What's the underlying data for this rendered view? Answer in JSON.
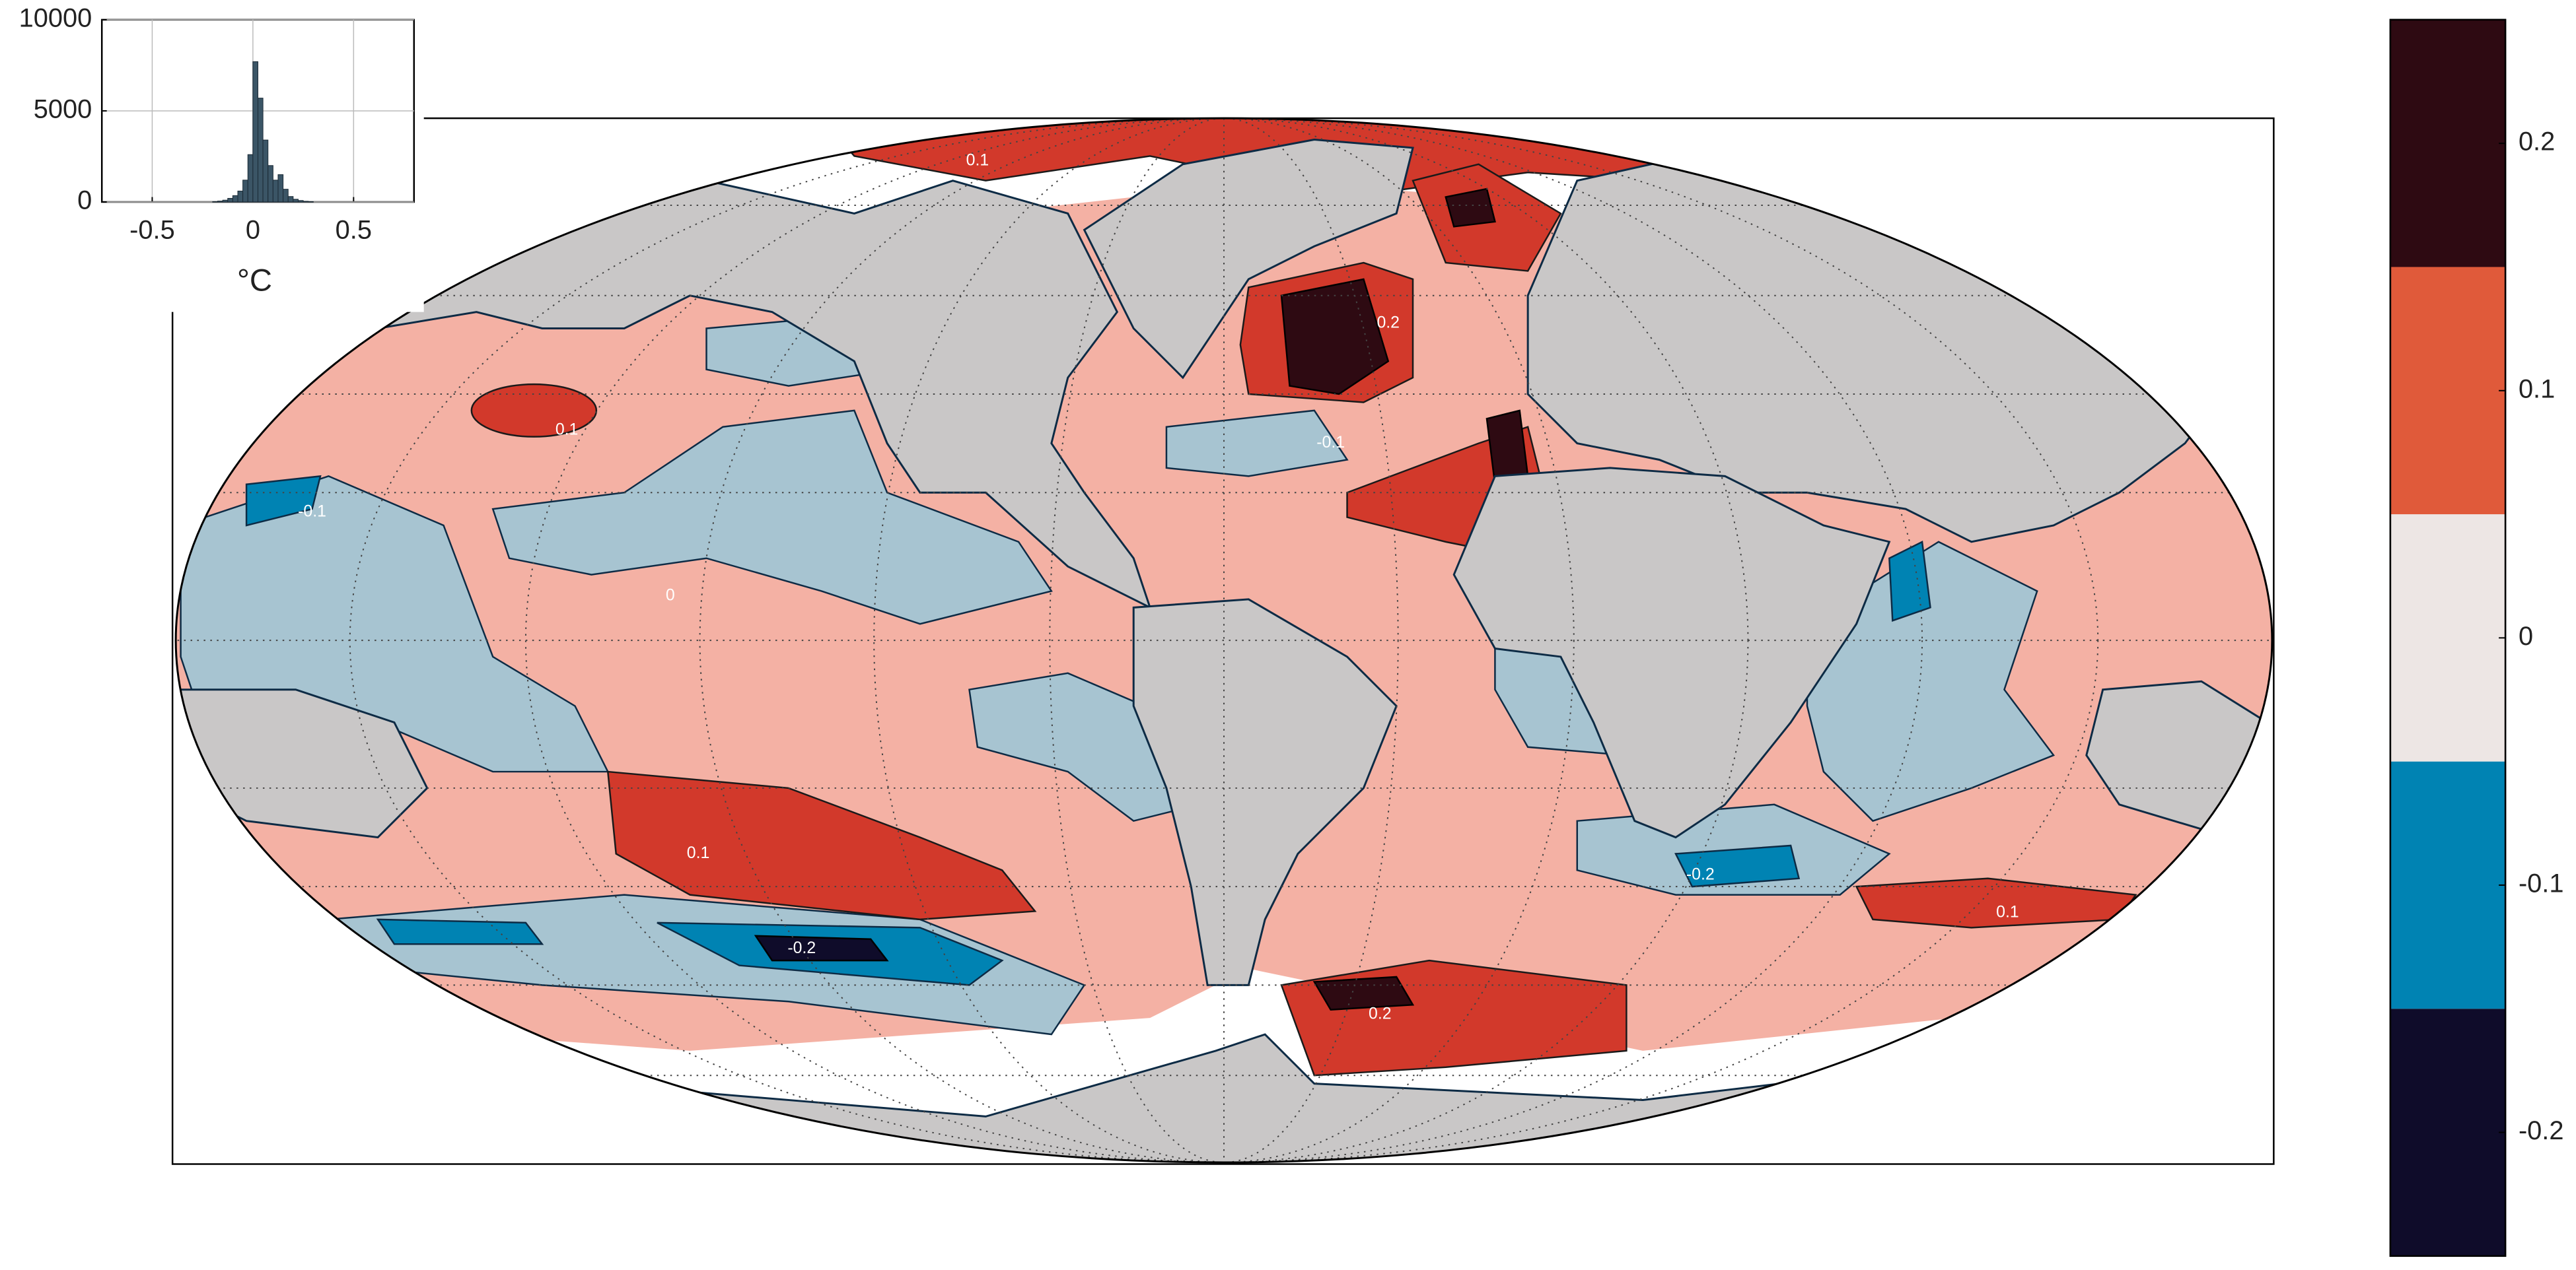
{
  "chart_data": [
    {
      "type": "histogram",
      "x_label": "°C",
      "bins": [
        -0.2,
        -0.175,
        -0.15,
        -0.125,
        -0.1,
        -0.075,
        -0.05,
        -0.025,
        0,
        0.025,
        0.05,
        0.075,
        0.1,
        0.125,
        0.15,
        0.175,
        0.2,
        0.225,
        0.25,
        0.275,
        0.3
      ],
      "values": [
        20,
        50,
        100,
        200,
        350,
        600,
        1200,
        2600,
        7700,
        5700,
        3400,
        2000,
        1200,
        1500,
        700,
        300,
        150,
        80,
        40,
        20
      ],
      "color": "#3b5566",
      "xlim": [
        -0.75,
        0.8
      ],
      "ylim": [
        0,
        10000
      ],
      "xticks": [
        -0.5,
        0,
        0.5
      ],
      "yticks": [
        0,
        5000,
        10000
      ],
      "grid": true
    },
    {
      "type": "colorbar",
      "levels": [
        -0.25,
        -0.15,
        -0.05,
        0.05,
        0.15,
        0.25
      ],
      "colors": [
        "#0f0c2a",
        "#0083b3",
        "#ede6e4",
        "#e05a3a",
        "#2e0a12"
      ],
      "ylim": [
        -0.25,
        0.25
      ],
      "yticks": [
        -0.2,
        -0.1,
        0,
        0.1,
        0.2
      ]
    }
  ],
  "map": {
    "contour_labels": [
      "0.1",
      "0.1",
      "-0.1",
      "0",
      "0.2",
      "-0.1",
      "0.1",
      "-0.2",
      "-0.2",
      "0.2",
      "0.1"
    ]
  }
}
